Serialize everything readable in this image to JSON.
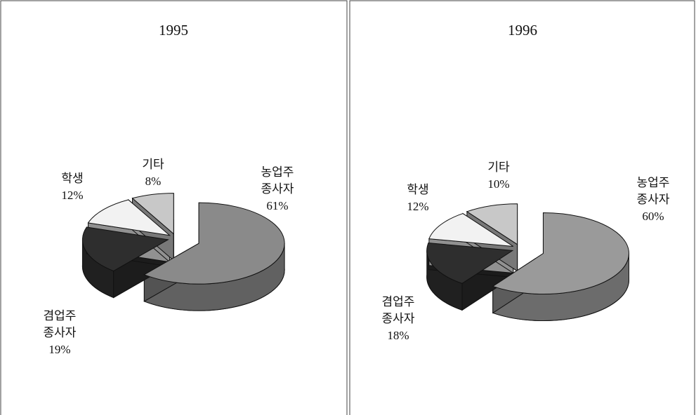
{
  "chart_data": [
    {
      "type": "pie",
      "title": "1995",
      "categories": [
        [
          "농업주",
          "종사자"
        ],
        [
          "겸업주",
          "종사자"
        ],
        [
          "학생"
        ],
        [
          "기타"
        ]
      ],
      "values": [
        61,
        19,
        12,
        8
      ],
      "value_labels": [
        "61%",
        "19%",
        "12%",
        "8%"
      ],
      "colors": [
        "#8a8a8a",
        "#2e2e2e",
        "#f2f2f2",
        "#c8c8c8"
      ]
    },
    {
      "type": "pie",
      "title": "1996",
      "categories": [
        [
          "농업주",
          "종사자"
        ],
        [
          "겸업주",
          "종사자"
        ],
        [
          "학생"
        ],
        [
          "기타"
        ]
      ],
      "values": [
        60,
        18,
        12,
        10
      ],
      "value_labels": [
        "60%",
        "18%",
        "12%",
        "10%"
      ],
      "colors": [
        "#9a9a9a",
        "#2e2e2e",
        "#f2f2f2",
        "#c8c8c8"
      ]
    }
  ]
}
